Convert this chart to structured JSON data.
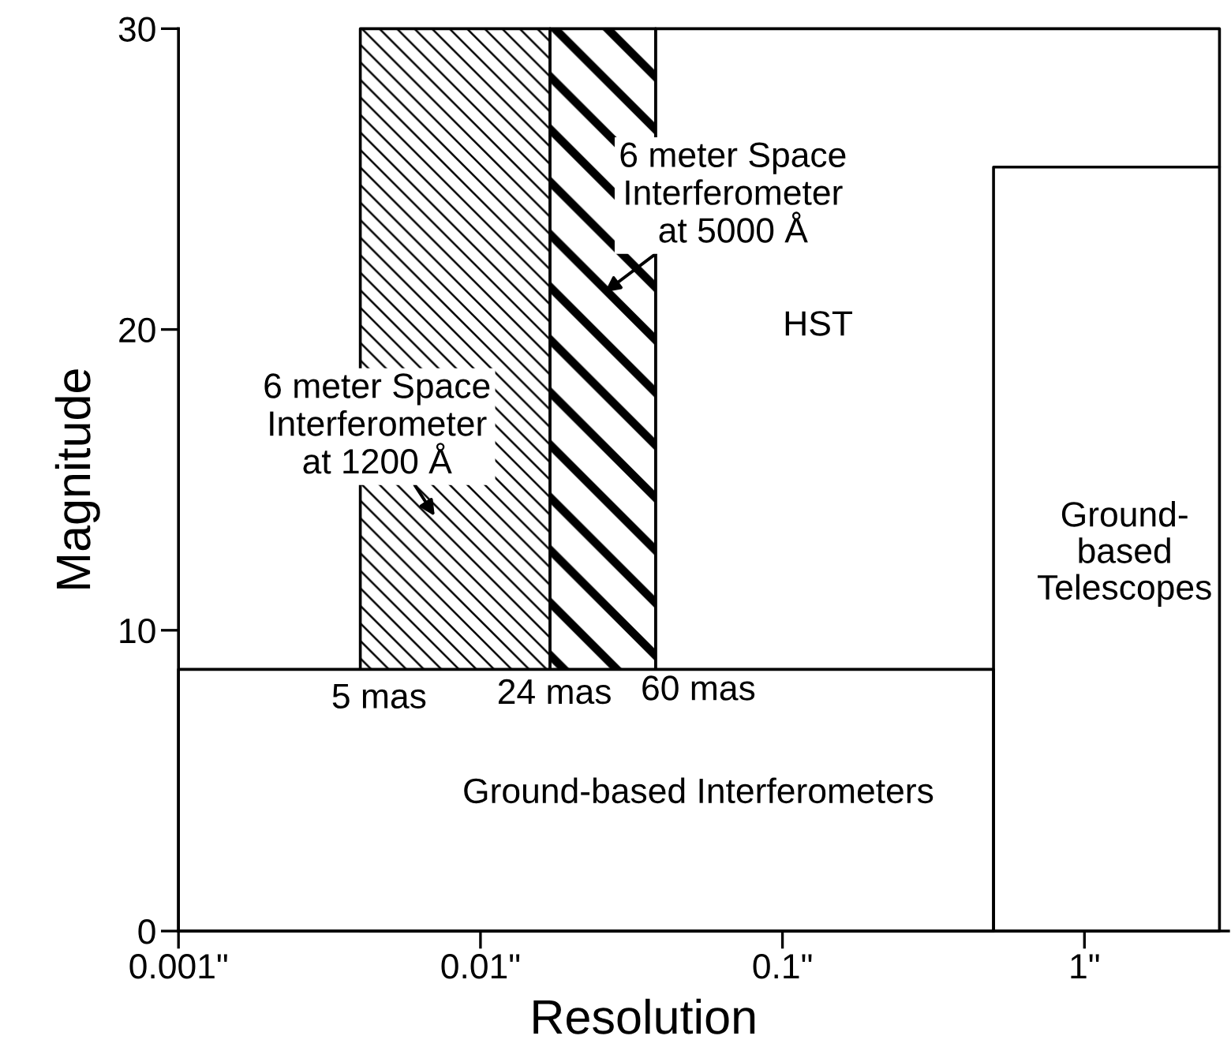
{
  "chart_data": {
    "type": "area",
    "xlabel": "Resolution",
    "ylabel": "Magnitude",
    "log": "x",
    "xlim": [
      0.001,
      3
    ],
    "xticks": [
      {
        "value": 0.001,
        "label": "0.001\""
      },
      {
        "value": 0.01,
        "label": "0.01\""
      },
      {
        "value": 0.1,
        "label": "0.1\""
      },
      {
        "value": 1,
        "label": "1\""
      }
    ],
    "ylim": [
      0,
      30
    ],
    "yticks": [
      0,
      10,
      20,
      30
    ],
    "series": [
      {
        "x": [
          0.038,
          2.8
        ],
        "values": [
          30,
          30
        ],
        "color": "#ffffff"
      },
      {
        "x": [
          0.004,
          0.017
        ],
        "values": [
          30,
          30
        ],
        "color": "#000000"
      },
      {
        "x": [
          0.017,
          0.038
        ],
        "values": [
          30,
          30
        ],
        "color": "#000000"
      },
      {
        "x": [
          0.001,
          0.5
        ],
        "values": [
          8.7,
          8.7
        ],
        "color": "#ffffff"
      },
      {
        "type": "line",
        "x": [
          0.5,
          0.5,
          2.8
        ],
        "values": [
          0,
          25.4,
          25.4
        ],
        "color": "#000000"
      }
    ],
    "annotations": [
      "6 meter Space\nInterferometer\nat 5000 Å",
      "HST",
      "6 meter Space\nInterferometer\nat 1200 Å",
      "Ground-\nbased\nTelescopes",
      "5 mas",
      "24 mas",
      "60 mas",
      "Ground-based Interferometers"
    ]
  }
}
